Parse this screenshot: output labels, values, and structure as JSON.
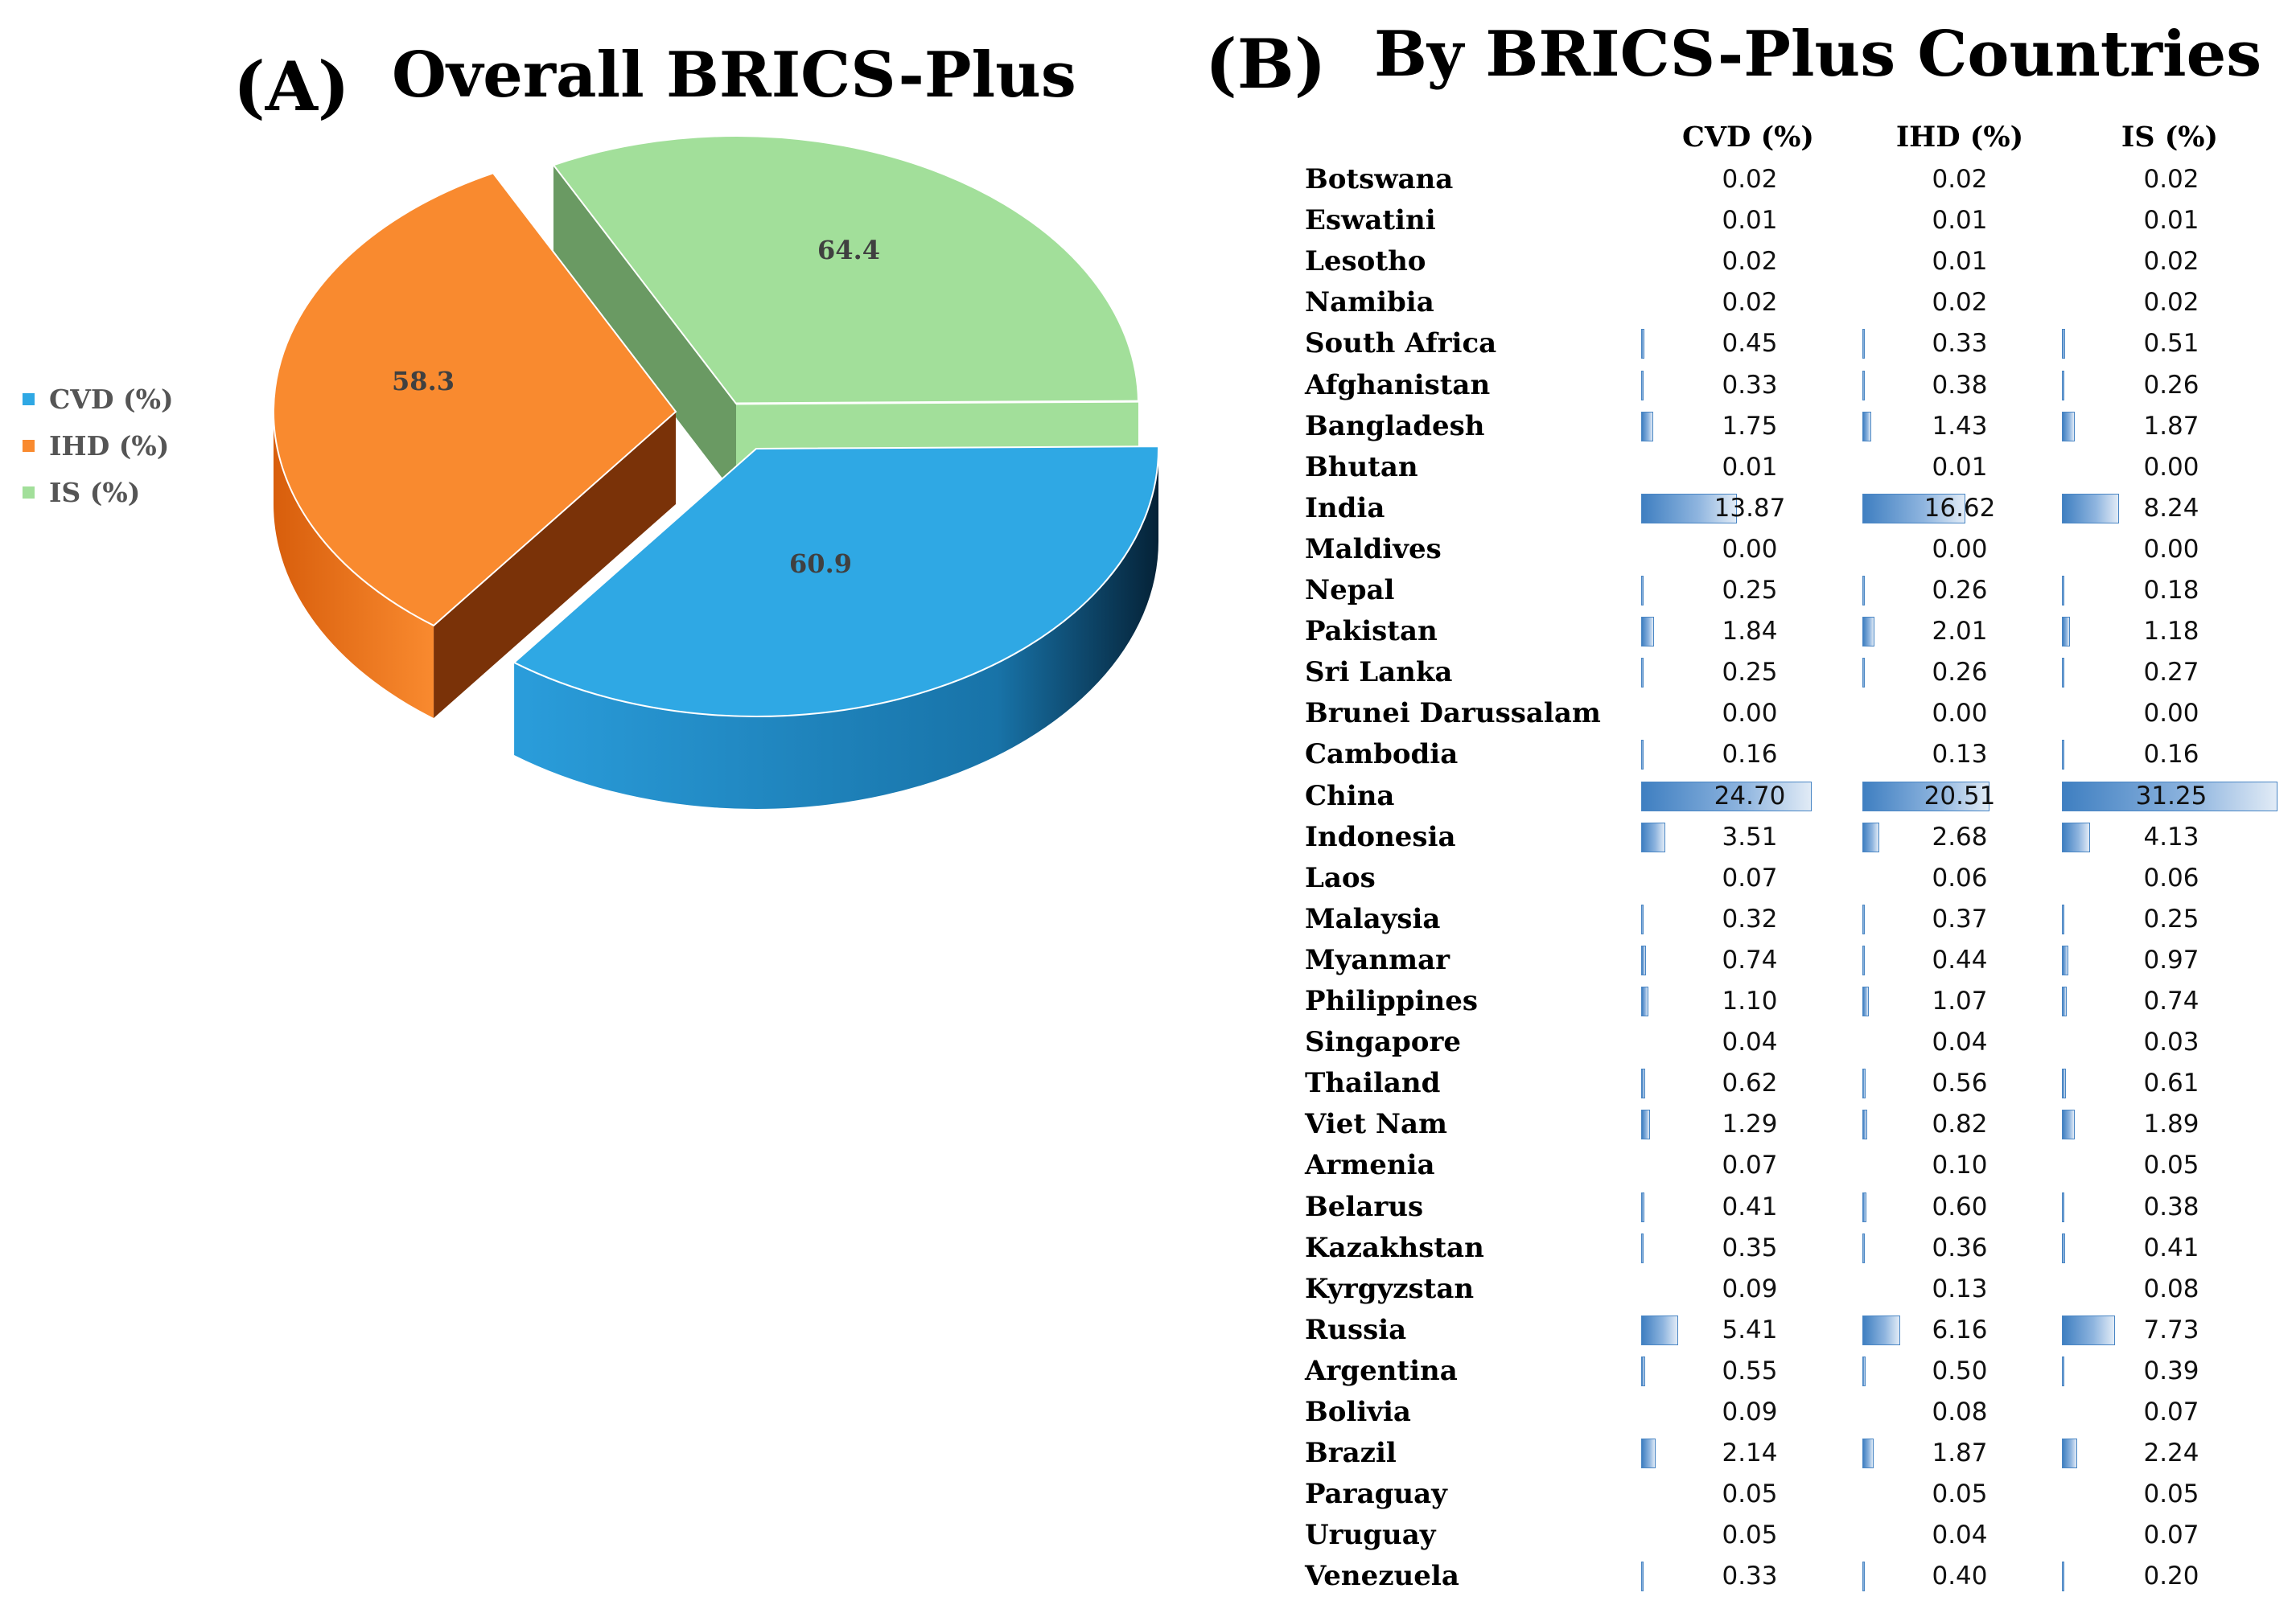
{
  "panel_a": {
    "label": "(A)",
    "title": "Overall BRICS-Plus"
  },
  "panel_b": {
    "label": "(B)",
    "title": "By BRICS-Plus Countries"
  },
  "colors": {
    "cvd": "#2fa8e4",
    "ihd": "#f98a2f",
    "is": "#a2df9a",
    "bar": "#4a86c4"
  },
  "chart_data": [
    {
      "type": "pie",
      "title": "Overall BRICS-Plus",
      "legend_position": "left",
      "slices": [
        {
          "name": "CVD (%)",
          "value": 60.9,
          "label": "60.9"
        },
        {
          "name": "IHD (%)",
          "value": 58.3,
          "label": "58.3"
        },
        {
          "name": "IS (%)",
          "value": 64.4,
          "label": "64.4"
        }
      ]
    },
    {
      "type": "table",
      "title": "By BRICS-Plus Countries",
      "columns": [
        "CVD (%)",
        "IHD (%)",
        "IS (%)"
      ],
      "rows": [
        {
          "country": "Botswana",
          "values": [
            "0.02",
            "0.02",
            "0.02"
          ]
        },
        {
          "country": "Eswatini",
          "values": [
            "0.01",
            "0.01",
            "0.01"
          ]
        },
        {
          "country": "Lesotho",
          "values": [
            "0.02",
            "0.01",
            "0.02"
          ]
        },
        {
          "country": "Namibia",
          "values": [
            "0.02",
            "0.02",
            "0.02"
          ]
        },
        {
          "country": "South Africa",
          "values": [
            "0.45",
            "0.33",
            "0.51"
          ]
        },
        {
          "country": "Afghanistan",
          "values": [
            "0.33",
            "0.38",
            "0.26"
          ]
        },
        {
          "country": "Bangladesh",
          "values": [
            "1.75",
            "1.43",
            "1.87"
          ]
        },
        {
          "country": "Bhutan",
          "values": [
            "0.01",
            "0.01",
            "0.00"
          ]
        },
        {
          "country": "India",
          "values": [
            "13.87",
            "16.62",
            "8.24"
          ]
        },
        {
          "country": "Maldives",
          "values": [
            "0.00",
            "0.00",
            "0.00"
          ]
        },
        {
          "country": "Nepal",
          "values": [
            "0.25",
            "0.26",
            "0.18"
          ]
        },
        {
          "country": "Pakistan",
          "values": [
            "1.84",
            "2.01",
            "1.18"
          ]
        },
        {
          "country": "Sri Lanka",
          "values": [
            "0.25",
            "0.26",
            "0.27"
          ]
        },
        {
          "country": "Brunei Darussalam",
          "values": [
            "0.00",
            "0.00",
            "0.00"
          ]
        },
        {
          "country": "Cambodia",
          "values": [
            "0.16",
            "0.13",
            "0.16"
          ]
        },
        {
          "country": "China",
          "values": [
            "24.70",
            "20.51",
            "31.25"
          ]
        },
        {
          "country": "Indonesia",
          "values": [
            "3.51",
            "2.68",
            "4.13"
          ]
        },
        {
          "country": "Laos",
          "values": [
            "0.07",
            "0.06",
            "0.06"
          ]
        },
        {
          "country": "Malaysia",
          "values": [
            "0.32",
            "0.37",
            "0.25"
          ]
        },
        {
          "country": "Myanmar",
          "values": [
            "0.74",
            "0.44",
            "0.97"
          ]
        },
        {
          "country": "Philippines",
          "values": [
            "1.10",
            "1.07",
            "0.74"
          ]
        },
        {
          "country": "Singapore",
          "values": [
            "0.04",
            "0.04",
            "0.03"
          ]
        },
        {
          "country": "Thailand",
          "values": [
            "0.62",
            "0.56",
            "0.61"
          ]
        },
        {
          "country": "Viet Nam",
          "values": [
            "1.29",
            "0.82",
            "1.89"
          ]
        },
        {
          "country": "Armenia",
          "values": [
            "0.07",
            "0.10",
            "0.05"
          ]
        },
        {
          "country": "Belarus",
          "values": [
            "0.41",
            "0.60",
            "0.38"
          ]
        },
        {
          "country": "Kazakhstan",
          "values": [
            "0.35",
            "0.36",
            "0.41"
          ]
        },
        {
          "country": "Kyrgyzstan",
          "values": [
            "0.09",
            "0.13",
            "0.08"
          ]
        },
        {
          "country": "Russia",
          "values": [
            "5.41",
            "6.16",
            "7.73"
          ]
        },
        {
          "country": "Argentina",
          "values": [
            "0.55",
            "0.50",
            "0.39"
          ]
        },
        {
          "country": "Bolivia",
          "values": [
            "0.09",
            "0.08",
            "0.07"
          ]
        },
        {
          "country": "Brazil",
          "values": [
            "2.14",
            "1.87",
            "2.24"
          ]
        },
        {
          "country": "Paraguay",
          "values": [
            "0.05",
            "0.05",
            "0.05"
          ]
        },
        {
          "country": "Uruguay",
          "values": [
            "0.05",
            "0.04",
            "0.07"
          ]
        },
        {
          "country": "Venezuela",
          "values": [
            "0.33",
            "0.40",
            "0.20"
          ]
        }
      ]
    }
  ]
}
